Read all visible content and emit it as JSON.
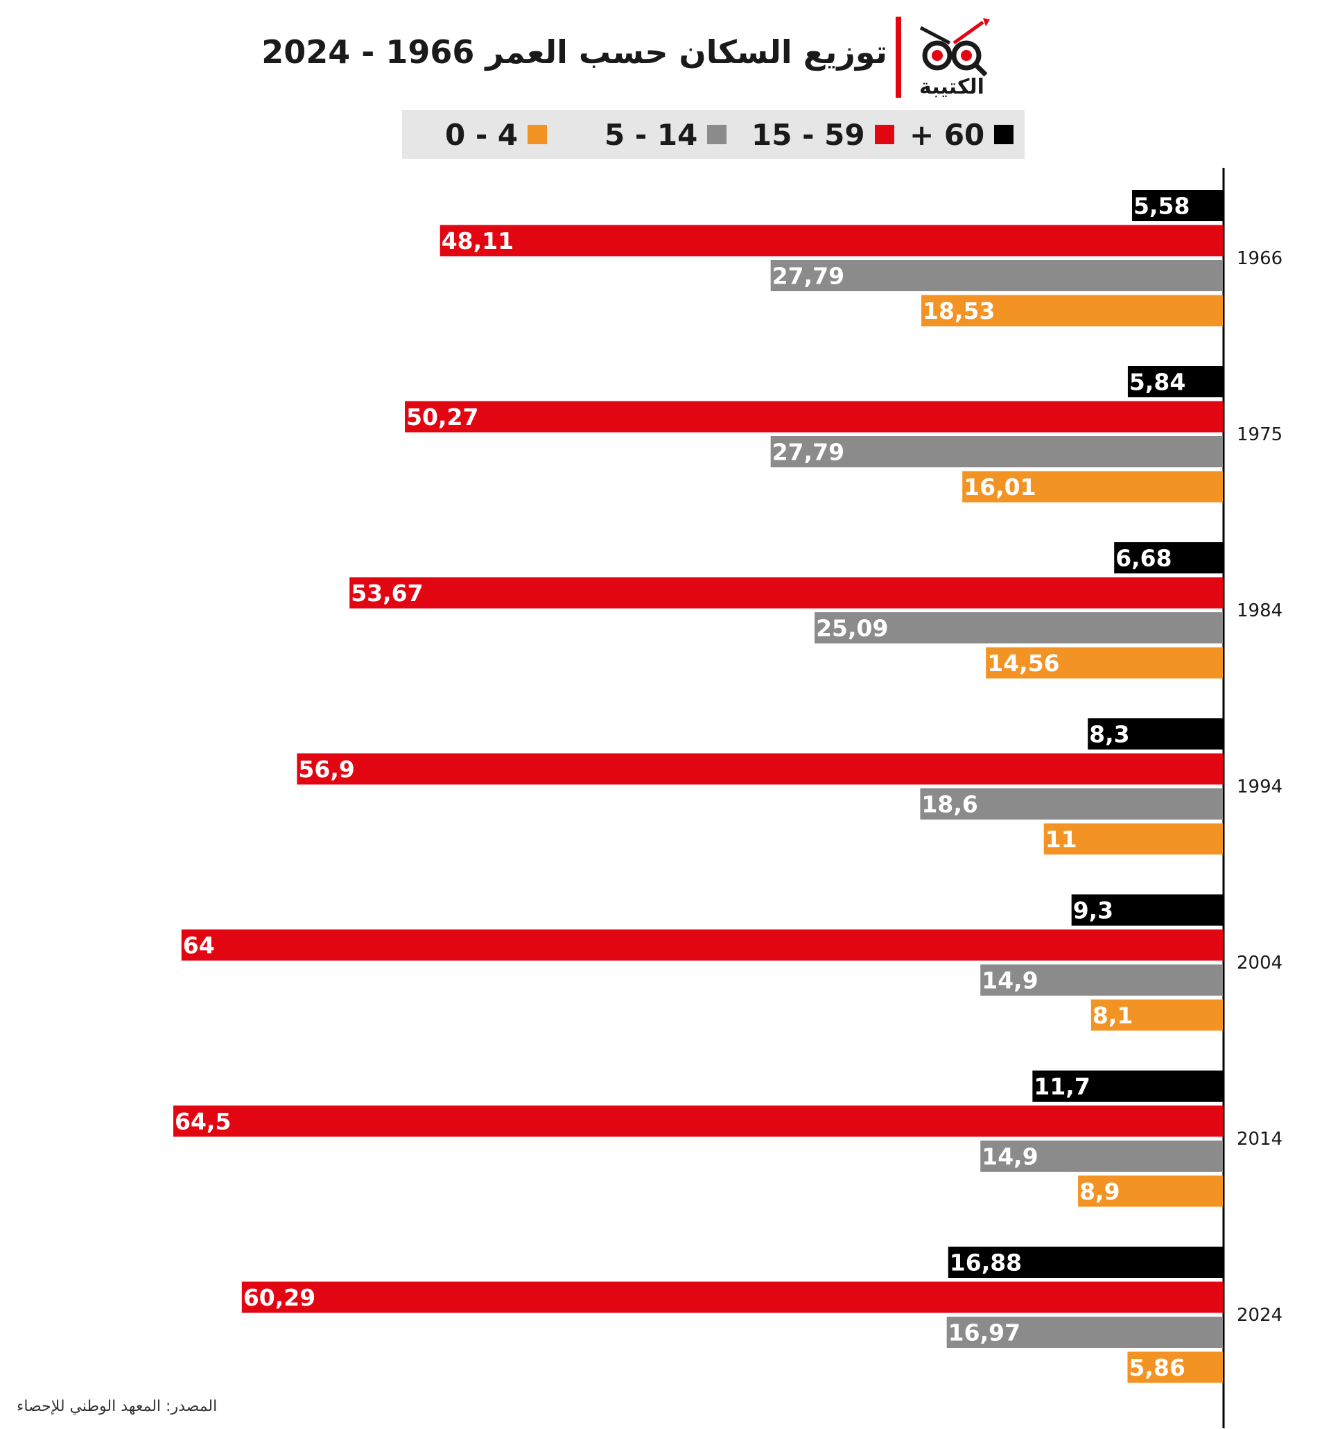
{
  "header": {
    "title": "توزيع السكان حسب العمر 1966 - 2024",
    "logo_text": "الكتيبة"
  },
  "legend": [
    {
      "label": "0 - 4",
      "color": "#f39323"
    },
    {
      "label": "5 - 14",
      "color": "#8b8b8b"
    },
    {
      "label": "15 - 59",
      "color": "#e20613"
    },
    {
      "label": "+ 60",
      "color": "#000000"
    }
  ],
  "chart_data": {
    "type": "bar",
    "orientation": "horizontal",
    "categories": [
      "1966",
      "1975",
      "1984",
      "1994",
      "2004",
      "2014",
      "2024"
    ],
    "series": [
      {
        "name": "+ 60",
        "color": "#000000",
        "values": [
          5.58,
          5.84,
          6.68,
          8.3,
          9.3,
          11.7,
          16.88
        ],
        "labels": [
          "5,58",
          "5,84",
          "6,68",
          "8,3",
          "9,3",
          "11,7",
          "16,88"
        ]
      },
      {
        "name": "15 - 59",
        "color": "#e20613",
        "values": [
          48.11,
          50.27,
          53.67,
          56.9,
          64,
          64.5,
          60.29
        ],
        "labels": [
          "48,11",
          "50,27",
          "53,67",
          "56,9",
          "64",
          "64,5",
          "60,29"
        ]
      },
      {
        "name": "5 - 14",
        "color": "#8b8b8b",
        "values": [
          27.79,
          27.79,
          25.09,
          18.6,
          14.9,
          14.9,
          16.97
        ],
        "labels": [
          "27,79",
          "27,79",
          "25,09",
          "18,6",
          "14,9",
          "14,9",
          "16,97"
        ]
      },
      {
        "name": "0 - 4",
        "color": "#f39323",
        "values": [
          18.53,
          16.01,
          14.56,
          11,
          8.1,
          8.9,
          5.86
        ],
        "labels": [
          "18,53",
          "16,01",
          "14,56",
          "11",
          "8,1",
          "8,9",
          "5,86"
        ]
      }
    ],
    "xlim": [
      0,
      64.5
    ],
    "title": "توزيع السكان حسب العمر 1966 - 2024"
  },
  "source": "المصدر: المعهد الوطني للإحصاء"
}
